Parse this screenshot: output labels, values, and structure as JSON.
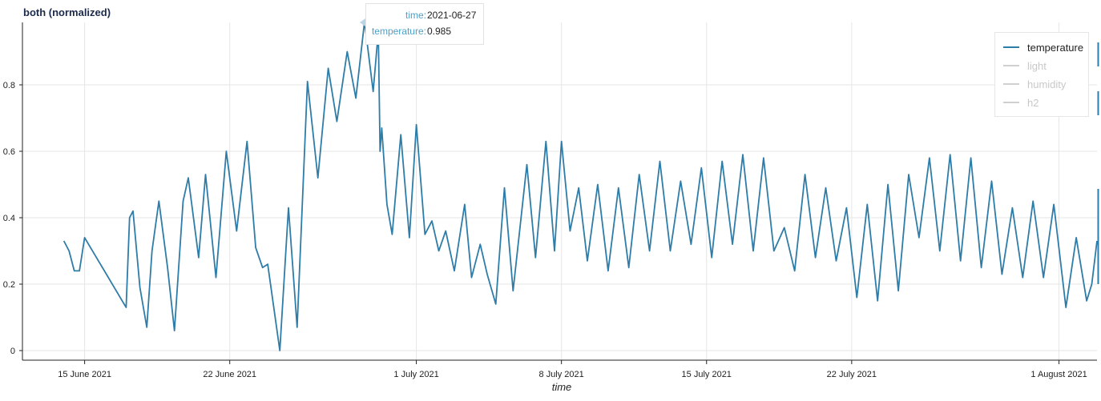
{
  "chart_data": {
    "type": "line",
    "title": "both (normalized)",
    "xlabel": "time",
    "ylabel": "",
    "ylim": [
      0,
      0.98
    ],
    "xlim": [
      "2021-06-12",
      "2021-08-02T20:00"
    ],
    "y_ticks": [
      "0",
      "0.2",
      "0.4",
      "0.6",
      "0.8"
    ],
    "x_ticks": [
      {
        "date": "2021-06-15",
        "label": "15 June 2021"
      },
      {
        "date": "2021-06-22",
        "label": "22 June 2021"
      },
      {
        "date": "2021-07-01",
        "label": "1 July 2021"
      },
      {
        "date": "2021-07-08",
        "label": "8 July 2021"
      },
      {
        "date": "2021-07-15",
        "label": "15 July 2021"
      },
      {
        "date": "2021-07-22",
        "label": "22 July 2021"
      },
      {
        "date": "2021-08-01",
        "label": "1 August 2021"
      }
    ],
    "grid": true,
    "legend_position": "top-right",
    "series": [
      {
        "name": "temperature",
        "color": "#2e7ca8",
        "visible": true,
        "points": [
          [
            "2021-06-14T00:00",
            0.33
          ],
          [
            "2021-06-14T06:00",
            0.3
          ],
          [
            "2021-06-14T12:00",
            0.24
          ],
          [
            "2021-06-14T18:00",
            0.24
          ],
          [
            "2021-06-15T00:00",
            0.34
          ],
          [
            "2021-06-17T00:00",
            0.13
          ],
          [
            "2021-06-17T04:00",
            0.4
          ],
          [
            "2021-06-17T08:00",
            0.42
          ],
          [
            "2021-06-17T16:00",
            0.19
          ],
          [
            "2021-06-18T00:00",
            0.07
          ],
          [
            "2021-06-18T06:00",
            0.3
          ],
          [
            "2021-06-18T14:00",
            0.45
          ],
          [
            "2021-06-19T00:00",
            0.25
          ],
          [
            "2021-06-19T08:00",
            0.06
          ],
          [
            "2021-06-19T18:00",
            0.45
          ],
          [
            "2021-06-20T00:00",
            0.52
          ],
          [
            "2021-06-20T12:00",
            0.28
          ],
          [
            "2021-06-20T20:00",
            0.53
          ],
          [
            "2021-06-21T08:00",
            0.22
          ],
          [
            "2021-06-21T20:00",
            0.6
          ],
          [
            "2021-06-22T08:00",
            0.36
          ],
          [
            "2021-06-22T20:00",
            0.63
          ],
          [
            "2021-06-23T06:00",
            0.31
          ],
          [
            "2021-06-23T14:00",
            0.25
          ],
          [
            "2021-06-23T20:00",
            0.26
          ],
          [
            "2021-06-24T10:00",
            0.0
          ],
          [
            "2021-06-24T20:00",
            0.43
          ],
          [
            "2021-06-25T06:00",
            0.07
          ],
          [
            "2021-06-25T18:00",
            0.81
          ],
          [
            "2021-06-26T06:00",
            0.52
          ],
          [
            "2021-06-26T18:00",
            0.85
          ],
          [
            "2021-06-27T04:00",
            0.69
          ],
          [
            "2021-06-27T16:00",
            0.9
          ],
          [
            "2021-06-28T02:00",
            0.76
          ],
          [
            "2021-06-28T12:00",
            0.99
          ],
          [
            "2021-06-28T22:00",
            0.78
          ],
          [
            "2021-06-29T04:00",
            0.96
          ],
          [
            "2021-06-29T06:00",
            0.6
          ],
          [
            "2021-06-29T08:00",
            0.67
          ],
          [
            "2021-06-29T14:00",
            0.44
          ],
          [
            "2021-06-29T20:00",
            0.35
          ],
          [
            "2021-06-30T06:00",
            0.65
          ],
          [
            "2021-06-30T16:00",
            0.34
          ],
          [
            "2021-07-01T00:00",
            0.68
          ],
          [
            "2021-07-01T10:00",
            0.35
          ],
          [
            "2021-07-01T18:00",
            0.39
          ],
          [
            "2021-07-02T02:00",
            0.3
          ],
          [
            "2021-07-02T10:00",
            0.36
          ],
          [
            "2021-07-02T20:00",
            0.24
          ],
          [
            "2021-07-03T08:00",
            0.44
          ],
          [
            "2021-07-03T16:00",
            0.22
          ],
          [
            "2021-07-04T02:00",
            0.32
          ],
          [
            "2021-07-04T10:00",
            0.23
          ],
          [
            "2021-07-04T20:00",
            0.14
          ],
          [
            "2021-07-05T06:00",
            0.49
          ],
          [
            "2021-07-05T16:00",
            0.18
          ],
          [
            "2021-07-06T08:00",
            0.56
          ],
          [
            "2021-07-06T18:00",
            0.28
          ],
          [
            "2021-07-07T06:00",
            0.63
          ],
          [
            "2021-07-07T16:00",
            0.3
          ],
          [
            "2021-07-08T00:00",
            0.63
          ],
          [
            "2021-07-08T10:00",
            0.36
          ],
          [
            "2021-07-08T20:00",
            0.49
          ],
          [
            "2021-07-09T06:00",
            0.27
          ],
          [
            "2021-07-09T18:00",
            0.5
          ],
          [
            "2021-07-10T06:00",
            0.24
          ],
          [
            "2021-07-10T18:00",
            0.49
          ],
          [
            "2021-07-11T06:00",
            0.25
          ],
          [
            "2021-07-11T18:00",
            0.53
          ],
          [
            "2021-07-12T06:00",
            0.3
          ],
          [
            "2021-07-12T18:00",
            0.57
          ],
          [
            "2021-07-13T06:00",
            0.3
          ],
          [
            "2021-07-13T18:00",
            0.51
          ],
          [
            "2021-07-14T06:00",
            0.32
          ],
          [
            "2021-07-14T18:00",
            0.55
          ],
          [
            "2021-07-15T06:00",
            0.28
          ],
          [
            "2021-07-15T18:00",
            0.57
          ],
          [
            "2021-07-16T06:00",
            0.32
          ],
          [
            "2021-07-16T18:00",
            0.59
          ],
          [
            "2021-07-17T06:00",
            0.3
          ],
          [
            "2021-07-17T18:00",
            0.58
          ],
          [
            "2021-07-18T06:00",
            0.3
          ],
          [
            "2021-07-18T18:00",
            0.37
          ],
          [
            "2021-07-19T06:00",
            0.24
          ],
          [
            "2021-07-19T18:00",
            0.53
          ],
          [
            "2021-07-20T06:00",
            0.28
          ],
          [
            "2021-07-20T18:00",
            0.49
          ],
          [
            "2021-07-21T06:00",
            0.27
          ],
          [
            "2021-07-21T18:00",
            0.43
          ],
          [
            "2021-07-22T06:00",
            0.16
          ],
          [
            "2021-07-22T18:00",
            0.44
          ],
          [
            "2021-07-23T06:00",
            0.15
          ],
          [
            "2021-07-23T18:00",
            0.5
          ],
          [
            "2021-07-24T06:00",
            0.18
          ],
          [
            "2021-07-24T18:00",
            0.53
          ],
          [
            "2021-07-25T06:00",
            0.34
          ],
          [
            "2021-07-25T18:00",
            0.58
          ],
          [
            "2021-07-26T06:00",
            0.3
          ],
          [
            "2021-07-26T18:00",
            0.59
          ],
          [
            "2021-07-27T06:00",
            0.27
          ],
          [
            "2021-07-27T18:00",
            0.58
          ],
          [
            "2021-07-28T06:00",
            0.25
          ],
          [
            "2021-07-28T18:00",
            0.51
          ],
          [
            "2021-07-29T06:00",
            0.23
          ],
          [
            "2021-07-29T18:00",
            0.43
          ],
          [
            "2021-07-30T06:00",
            0.22
          ],
          [
            "2021-07-30T18:00",
            0.45
          ],
          [
            "2021-07-31T06:00",
            0.22
          ],
          [
            "2021-07-31T18:00",
            0.44
          ],
          [
            "2021-08-01T08:00",
            0.13
          ],
          [
            "2021-08-01T20:00",
            0.34
          ],
          [
            "2021-08-02T08:00",
            0.15
          ],
          [
            "2021-08-02T14:00",
            0.2
          ],
          [
            "2021-08-02T20:00",
            0.33
          ]
        ]
      },
      {
        "name": "light",
        "color": "#d0d0d0",
        "visible": false
      },
      {
        "name": "humidity",
        "color": "#d0d0d0",
        "visible": false
      },
      {
        "name": "h2",
        "color": "#d0d0d0",
        "visible": false
      }
    ]
  },
  "tooltip": {
    "rows": [
      {
        "key": "time:",
        "value": "2021-06-27"
      },
      {
        "key": "temperature:",
        "value": "0.985"
      }
    ]
  },
  "colors": {
    "grid": "#e6e6e6",
    "axis": "#222222",
    "legend_inactive_text": "#c8c8c8",
    "tooltip_key": "#4fa0c8"
  }
}
